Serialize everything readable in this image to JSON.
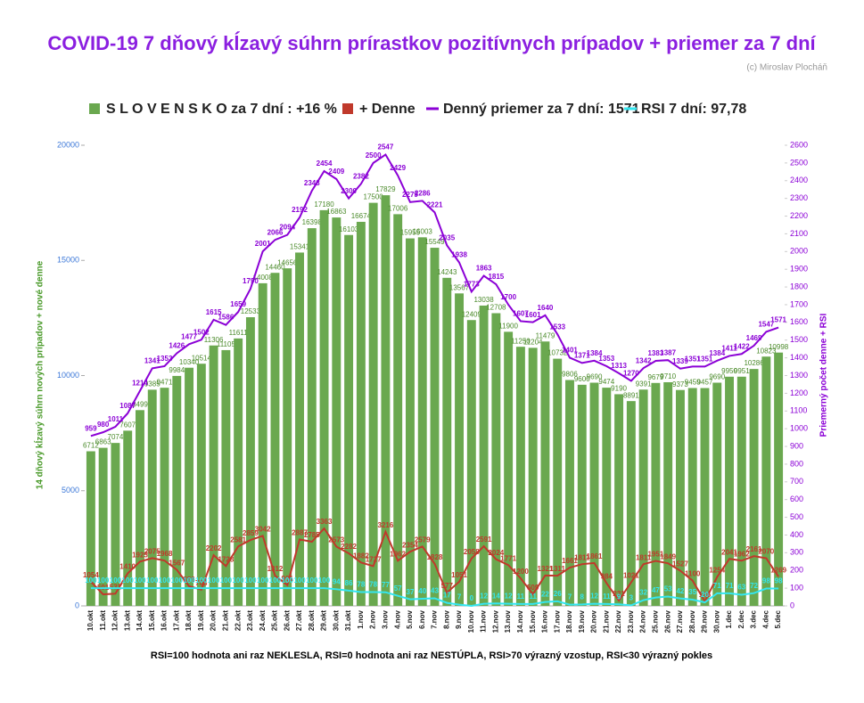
{
  "chart_data": {
    "type": "combo",
    "title": "COVID-19 7 dňový kĺzavý súhrn prírastkov pozitívnych prípadov + priemer za 7 dní",
    "subtitle": "(c) Miroslav Plocháň",
    "y_label": "14 dňový kĺzavý  súhrn nových prípadov + nové denne",
    "y2_label": "Priemerný počet denne + RSI",
    "note": "RSI=100 hodnota ani raz NEKLESLA, RSI=0 hodnota ani raz NESTÚPLA, RSI>70 výrazný vzostup, RSI<30 výrazný pokles",
    "categories": [
      "10.okt",
      "11.okt",
      "12.okt",
      "13.okt",
      "14.okt",
      "15.okt",
      "16.okt",
      "17.okt",
      "18.okt",
      "19.okt",
      "20.okt",
      "21.okt",
      "22.okt",
      "23.okt",
      "24.okt",
      "25.okt",
      "26.okt",
      "27.okt",
      "28.okt",
      "29.okt",
      "30.okt",
      "31.okt",
      "1.nov",
      "2.nov",
      "3.nov",
      "4.nov",
      "5.nov",
      "6.nov",
      "7.nov",
      "8.nov",
      "9.nov",
      "10.nov",
      "11.nov",
      "12.nov",
      "13.nov",
      "14.nov",
      "15.nov",
      "16.nov",
      "17.nov",
      "18.nov",
      "19.nov",
      "20.nov",
      "21.nov",
      "22.nov",
      "23.nov",
      "24.nov",
      "25.nov",
      "26.nov",
      "27.nov",
      "28.nov",
      "29.nov",
      "30.nov",
      "1.dec",
      "2.dec",
      "3.dec",
      "4.dec",
      "5.dec"
    ],
    "ylim": [
      0,
      20000
    ],
    "yticks": [
      0,
      5000,
      10000,
      15000,
      20000
    ],
    "y2lim": [
      0,
      2600
    ],
    "y2ticks": [
      0,
      100,
      200,
      300,
      400,
      500,
      600,
      700,
      800,
      900,
      1000,
      1100,
      1200,
      1300,
      1400,
      1500,
      1600,
      1700,
      1800,
      1900,
      2000,
      2100,
      2200,
      2300,
      2400,
      2500,
      2600
    ],
    "series": [
      {
        "name": "S L O V E N S K O za 7 dní : +16 %",
        "type": "bar",
        "color": "#6aa84f",
        "values": [
          6712,
          6863,
          7074,
          7607,
          8499,
          9385,
          9471,
          9984,
          10340,
          10514,
          11306,
          11105,
          11611,
          12533,
          14008,
          14460,
          14656,
          15341,
          16398,
          17180,
          16863,
          16103,
          16674,
          17500,
          17829,
          17006,
          15955,
          16003,
          15549,
          14243,
          13567,
          12409,
          13038,
          12708,
          11900,
          11250,
          11204,
          11479,
          10732,
          9806,
          9600,
          9690,
          9474,
          9190,
          8891,
          9391,
          9679,
          9710,
          9373,
          9459,
          9457,
          9690,
          9950,
          9951,
          10286,
          10823,
          10998
        ]
      },
      {
        "name": "+ Denne",
        "type": "step",
        "color": "#c0392b",
        "values": [
          1054,
          501,
          531,
          1410,
          1925,
          2075,
          1968,
          1567,
          856,
          703,
          2202,
          1728,
          2581,
          2859,
          3042,
          1312,
          901,
          2887,
          2785,
          3363,
          2573,
          2282,
          1882,
          1727,
          3216,
          1962,
          2354,
          2579,
          1828,
          577,
          1051,
          2058,
          2591,
          2024,
          1771,
          1200,
          509,
          1321,
          1311,
          1661,
          1811,
          1861,
          984,
          231,
          1021,
          1811,
          1951,
          1849,
          1527,
          1100,
          196,
          1254,
          2041,
          1962,
          2161,
          2070,
          1269
        ]
      },
      {
        "name": "Denný priemer za 7 dní: 1571",
        "type": "line",
        "axis": "y2",
        "color": "#8b00d6",
        "values": [
          959,
          980,
          1011,
          1087,
          1214,
          1341,
          1353,
          1426,
          1477,
          1502,
          1615,
          1586,
          1659,
          1790,
          2001,
          2066,
          2094,
          2192,
          2343,
          2454,
          2409,
          2300,
          2382,
          2500,
          2547,
          2429,
          2279,
          2286,
          2221,
          2035,
          1938,
          1773,
          1863,
          1815,
          1700,
          1607,
          1601,
          1640,
          1533,
          1401,
          1371,
          1384,
          1353,
          1313,
          1270,
          1342,
          1383,
          1387,
          1339,
          1351,
          1351,
          1384,
          1411,
          1422,
          1469,
          1547,
          1571
        ]
      },
      {
        "name": "RSI 7 dní: 97,78",
        "type": "line",
        "axis": "y2",
        "color": "#33e6f0",
        "values": [
          100,
          100,
          100,
          100,
          100,
          100,
          100,
          100,
          100,
          100,
          100,
          100,
          100,
          100,
          100,
          100,
          100,
          100,
          100,
          100,
          94,
          86,
          78,
          78,
          77,
          57,
          37,
          40,
          43,
          17,
          7,
          0,
          12,
          14,
          12,
          11,
          11,
          22,
          26,
          7,
          8,
          12,
          11,
          9,
          3,
          32,
          47,
          53,
          42,
          35,
          20,
          71,
          71,
          63,
          72,
          98,
          98
        ]
      }
    ]
  }
}
